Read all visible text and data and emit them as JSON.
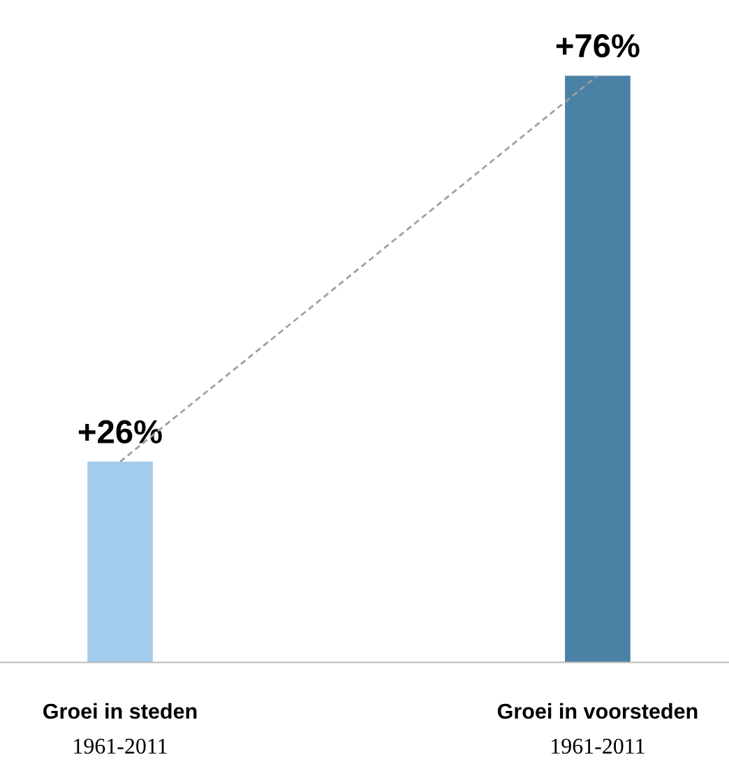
{
  "chart_data": {
    "type": "bar",
    "categories": [
      "Groei in steden\n1961-2011",
      "Groei in voorsteden\n1961-2011"
    ],
    "series": [
      {
        "colors": [
          "#a3cbeb",
          "#4a82a6"
        ],
        "values": [
          26,
          76
        ],
        "value_labels": [
          "+26%",
          "+76%"
        ]
      },
      {
        "type": "line",
        "color": "#a0a0a0",
        "line_style": "dashed",
        "values": [
          26,
          76
        ]
      }
    ]
  }
}
